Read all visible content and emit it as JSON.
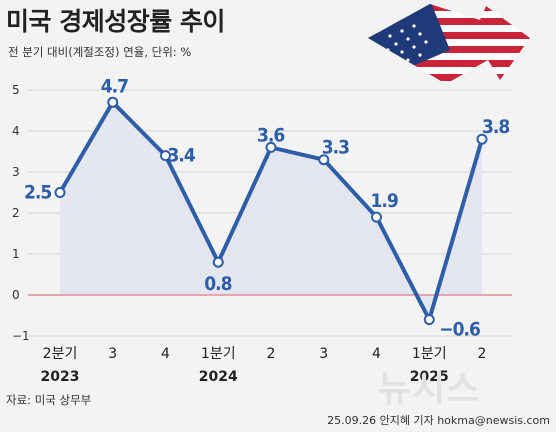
{
  "header": {
    "title": "미국 경제성장률 추이",
    "subtitle": "전 분기 대비(계절조정) 연율, 단위: %"
  },
  "footer": {
    "source": "자료: 미국 상무부",
    "credit": "25.09.26 안지혜 기자 hokma@newsis.com",
    "watermark": "뉴시스"
  },
  "colors": {
    "line": "#2f5ea8",
    "area": "#e3e6ef",
    "zero_line": "#e07a8a",
    "grid": "#d6d6d6"
  },
  "chart_data": {
    "type": "area",
    "categories": [
      "2분기",
      "3",
      "4",
      "1분기",
      "2",
      "3",
      "4",
      "1분기",
      "2"
    ],
    "year_labels": [
      {
        "index": 0,
        "label": "2023"
      },
      {
        "index": 3,
        "label": "2024"
      },
      {
        "index": 7,
        "label": "2025"
      }
    ],
    "values": [
      2.5,
      4.7,
      3.4,
      0.8,
      3.6,
      3.3,
      1.9,
      -0.6,
      3.8
    ],
    "value_labels": [
      "2.5",
      "4.7",
      "3.4",
      "0.8",
      "3.6",
      "3.3",
      "1.9",
      "−0.6",
      "3.8"
    ],
    "yticks": [
      5,
      4,
      3,
      2,
      1,
      0,
      -1
    ],
    "ylim": [
      -1,
      5
    ],
    "grid": true
  }
}
